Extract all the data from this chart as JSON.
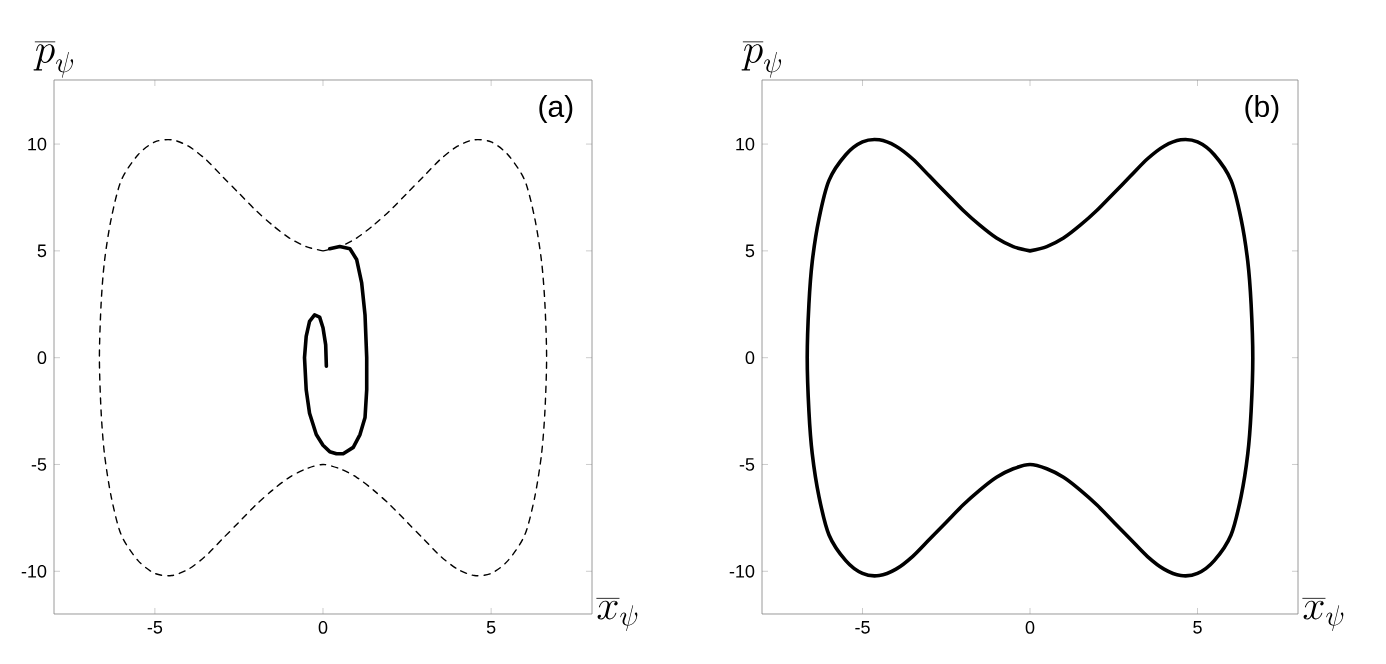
{
  "chart_data": [
    {
      "type": "line",
      "xlabel": "\\overline{x}_{\\psi}",
      "ylabel": "\\overline{p}_{\\psi}",
      "annotations": [
        "(a)"
      ],
      "xlim": [
        -8,
        8
      ],
      "ylim": [
        -12,
        13
      ],
      "xticks": [
        -5,
        0,
        5
      ],
      "yticks": [
        -10,
        -5,
        0,
        5,
        10
      ],
      "series": [
        {
          "color": "#000000",
          "line_style": "solid",
          "x": [
            0.2,
            0.5,
            0.8,
            1.0,
            1.15,
            1.25,
            1.3,
            1.3,
            1.25,
            1.1,
            0.9,
            0.6,
            0.4,
            0.2,
            0,
            -0.2,
            -0.4,
            -0.5,
            -0.55,
            -0.5,
            -0.4,
            -0.25,
            -0.1,
            0,
            0.08,
            0.1
          ],
          "values": [
            5.1,
            5.2,
            5.1,
            4.6,
            3.5,
            2,
            0,
            -1.5,
            -2.8,
            -3.6,
            -4.2,
            -4.5,
            -4.5,
            -4.4,
            -4.1,
            -3.6,
            -2.6,
            -1.5,
            0,
            1,
            1.7,
            2.0,
            1.9,
            1.4,
            0.6,
            -0.4
          ]
        }
      ]
    },
    {
      "type": "line",
      "xlabel": "\\overline{x}_{\\psi}",
      "ylabel": "\\overline{p}_{\\psi}",
      "annotations": [
        "(b)"
      ],
      "xlim": [
        -8,
        8
      ],
      "ylim": [
        -12,
        13
      ],
      "xticks": [
        -5,
        0,
        5
      ],
      "yticks": [
        -10,
        -5,
        0,
        5,
        10
      ]
    }
  ]
}
